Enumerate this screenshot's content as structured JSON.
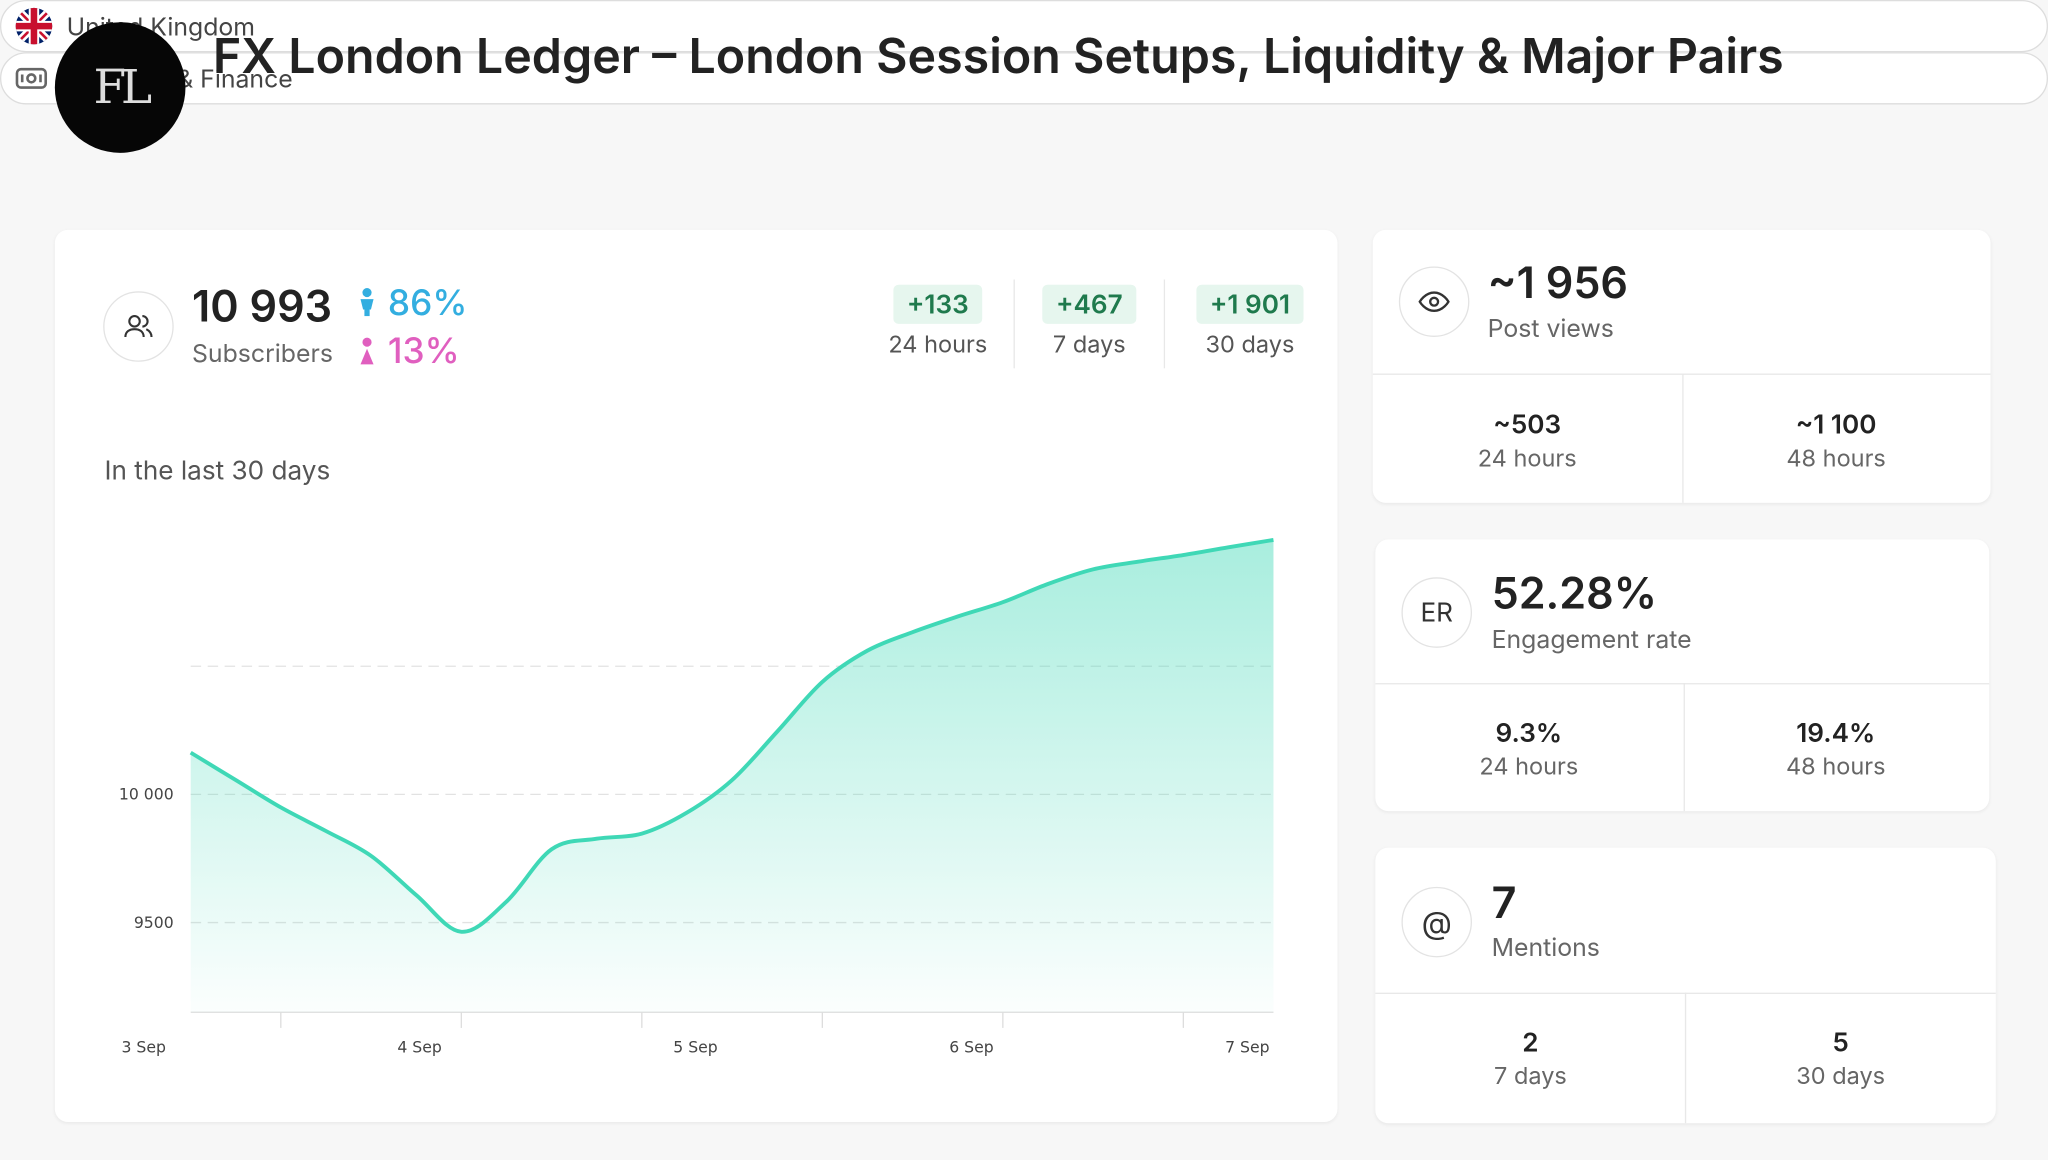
{
  "header": {
    "logo": "FL",
    "title": "FX London Ledger – London Session Setups, Liquidity & Major Pairs",
    "tags": [
      "United Kingdom",
      "Economy & Finance"
    ]
  },
  "subscribers": {
    "count": "10 993",
    "label": "Subscribers",
    "male": "86%",
    "female": "13%",
    "growth": [
      {
        "value": "+133",
        "period": "24 hours"
      },
      {
        "value": "+467",
        "period": "7 days"
      },
      {
        "value": "+1 901",
        "period": "30 days"
      }
    ]
  },
  "chart_data": {
    "type": "area",
    "title": "In the last 30 days",
    "color": "#3fd8b6",
    "x_axis_labels": [
      "3 Sep",
      "4 Sep",
      "5 Sep",
      "6 Sep",
      "7 Sep"
    ],
    "values": [
      10163,
      10056,
      9949,
      9857,
      9760,
      9607,
      9464,
      9582,
      9786,
      9827,
      9847,
      9929,
      10056,
      10245,
      10439,
      10561,
      10633,
      10694,
      10750,
      10821,
      10878,
      10908,
      10934,
      10964,
      10993
    ],
    "ylim": [
      9150,
      11000
    ],
    "yticks": [
      9500,
      {
        "value": 10000,
        "label": "10 000"
      }
    ],
    "ygrid": [
      9500,
      10000,
      10500
    ]
  },
  "cards": [
    {
      "value": "~1 956",
      "label": "Post views",
      "stats": [
        {
          "value": "~503",
          "period": "24 hours"
        },
        {
          "value": "~1 100",
          "period": "48 hours"
        }
      ]
    },
    {
      "icon": "ER",
      "value": "52.28%",
      "label": "Engagement rate",
      "stats": [
        {
          "value": "9.3%",
          "period": "24 hours"
        },
        {
          "value": "19.4%",
          "period": "48 hours"
        }
      ]
    },
    {
      "icon": "@",
      "value": "7",
      "label": "Mentions",
      "stats": [
        {
          "value": "2",
          "period": "7 days"
        },
        {
          "value": "5",
          "period": "30 days"
        }
      ]
    }
  ]
}
